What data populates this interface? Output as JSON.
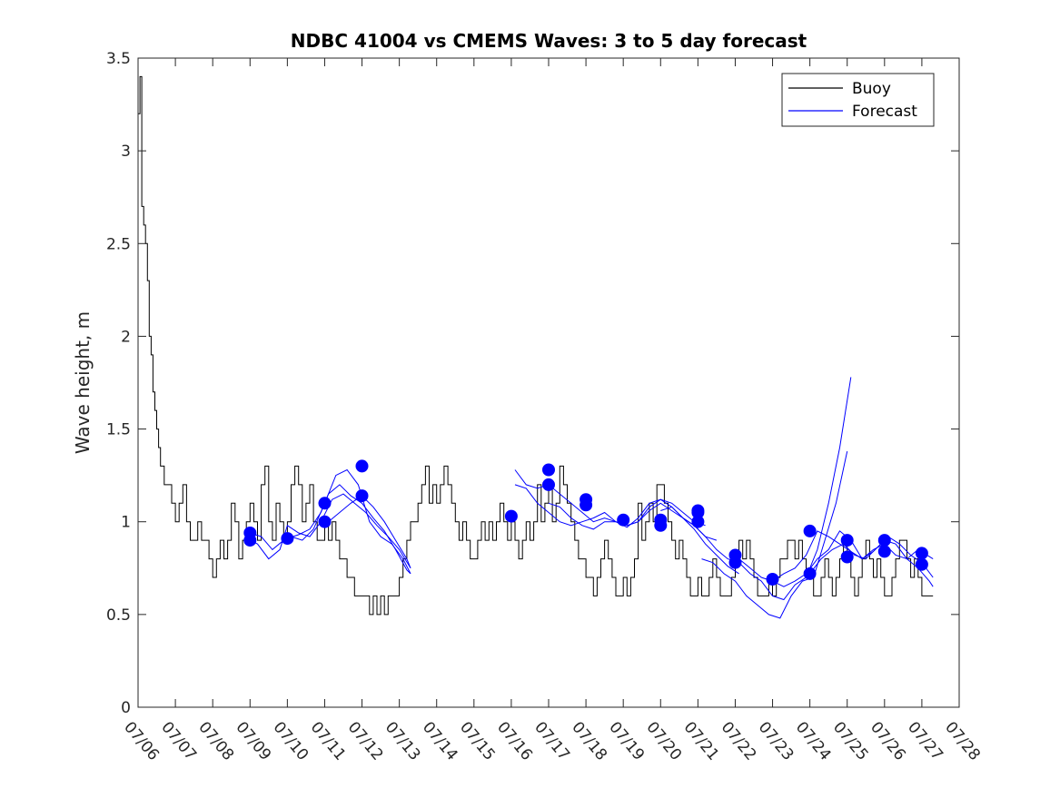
{
  "chart_data": {
    "type": "line",
    "title": "NDBC 41004 vs CMEMS Waves: 3 to 5 day forecast",
    "xlabel": "",
    "ylabel": "Wave height, m",
    "xlim": [
      "07/06",
      "07/28"
    ],
    "ylim": [
      0,
      3.5
    ],
    "grid": false,
    "legend_position": "top-right",
    "xticks": [
      "07/06",
      "07/07",
      "07/08",
      "07/09",
      "07/10",
      "07/11",
      "07/12",
      "07/13",
      "07/14",
      "07/15",
      "07/16",
      "07/17",
      "07/18",
      "07/19",
      "07/20",
      "07/21",
      "07/22",
      "07/23",
      "07/24",
      "07/25",
      "07/26",
      "07/27",
      "07/28"
    ],
    "yticks": [
      0,
      0.5,
      1,
      1.5,
      2,
      2.5,
      3,
      3.5
    ],
    "colors": {
      "buoy": "#000000",
      "forecast": "#0000ff"
    },
    "series": [
      {
        "name": "Buoy",
        "style": "line",
        "x": [
          0.0,
          0.05,
          0.1,
          0.15,
          0.2,
          0.25,
          0.3,
          0.35,
          0.4,
          0.45,
          0.5,
          0.55,
          0.6,
          0.65,
          0.7,
          0.75,
          0.8,
          0.9,
          1.0,
          1.1,
          1.2,
          1.3,
          1.4,
          1.5,
          1.6,
          1.7,
          1.8,
          1.9,
          2.0,
          2.1,
          2.2,
          2.3,
          2.4,
          2.5,
          2.6,
          2.7,
          2.8,
          2.9,
          3.0,
          3.1,
          3.2,
          3.3,
          3.4,
          3.5,
          3.6,
          3.7,
          3.8,
          3.9,
          4.0,
          4.1,
          4.2,
          4.3,
          4.4,
          4.5,
          4.6,
          4.7,
          4.8,
          4.9,
          5.0,
          5.1,
          5.2,
          5.3,
          5.4,
          5.5,
          5.6,
          5.7,
          5.8,
          5.9,
          6.0,
          6.1,
          6.2,
          6.3,
          6.4,
          6.5,
          6.6,
          6.7,
          6.8,
          6.9,
          7.0,
          7.1,
          7.2,
          7.3,
          7.4,
          7.5,
          7.6,
          7.7,
          7.8,
          7.9,
          8.0,
          8.1,
          8.2,
          8.3,
          8.4,
          8.5,
          8.6,
          8.7,
          8.8,
          8.9,
          9.0,
          9.1,
          9.2,
          9.3,
          9.4,
          9.5,
          9.6,
          9.7,
          9.8,
          9.9,
          10.0,
          10.1,
          10.2,
          10.3,
          10.4,
          10.5,
          10.6,
          10.7,
          10.8,
          10.9,
          11.0,
          11.1,
          11.2,
          11.3,
          11.4,
          11.5,
          11.6,
          11.7,
          11.8,
          11.9,
          12.0,
          12.1,
          12.2,
          12.3,
          12.4,
          12.5,
          12.6,
          12.7,
          12.8,
          12.9,
          13.0,
          13.1,
          13.2,
          13.3,
          13.4,
          13.5,
          13.6,
          13.7,
          13.8,
          13.9,
          14.0,
          14.1,
          14.2,
          14.3,
          14.4,
          14.5,
          14.6,
          14.7,
          14.8,
          14.9,
          15.0,
          15.1,
          15.2,
          15.3,
          15.4,
          15.5,
          15.6,
          15.7,
          15.8,
          15.9,
          16.0,
          16.1,
          16.2,
          16.3,
          16.4,
          16.5,
          16.6,
          16.7,
          16.8,
          16.9,
          17.0,
          17.1,
          17.2,
          17.3,
          17.4,
          17.5,
          17.6,
          17.7,
          17.8,
          17.9,
          18.0,
          18.1,
          18.2,
          18.3,
          18.4,
          18.5,
          18.6,
          18.7,
          18.8,
          18.9,
          19.0,
          19.1,
          19.2,
          19.3,
          19.4,
          19.5,
          19.6,
          19.7,
          19.8,
          19.9,
          20.0,
          20.1,
          20.2,
          20.3,
          20.4,
          20.5,
          20.6,
          20.7,
          20.8,
          20.9,
          21.0,
          21.1,
          21.2,
          21.3
        ],
        "y": [
          3.2,
          3.4,
          2.7,
          2.6,
          2.5,
          2.3,
          2.0,
          1.9,
          1.7,
          1.6,
          1.5,
          1.4,
          1.3,
          1.3,
          1.2,
          1.2,
          1.2,
          1.1,
          1.0,
          1.1,
          1.2,
          1.0,
          0.9,
          0.9,
          1.0,
          0.9,
          0.9,
          0.8,
          0.7,
          0.8,
          0.9,
          0.8,
          0.9,
          1.1,
          1.0,
          0.8,
          0.9,
          1.0,
          1.1,
          1.0,
          0.9,
          1.2,
          1.3,
          1.0,
          0.9,
          1.1,
          1.0,
          0.9,
          1.0,
          1.2,
          1.3,
          1.2,
          1.0,
          1.1,
          1.2,
          1.0,
          0.9,
          0.9,
          1.0,
          0.9,
          1.0,
          0.9,
          0.8,
          0.8,
          0.7,
          0.7,
          0.6,
          0.6,
          0.6,
          0.6,
          0.5,
          0.6,
          0.5,
          0.6,
          0.5,
          0.6,
          0.6,
          0.6,
          0.7,
          0.8,
          0.9,
          1.0,
          1.0,
          1.1,
          1.2,
          1.3,
          1.1,
          1.2,
          1.1,
          1.2,
          1.3,
          1.2,
          1.1,
          1.0,
          0.9,
          1.0,
          0.9,
          0.8,
          0.8,
          0.9,
          1.0,
          0.9,
          1.0,
          0.9,
          1.0,
          1.1,
          1.0,
          0.9,
          1.0,
          0.9,
          0.8,
          0.9,
          1.0,
          0.9,
          1.0,
          1.2,
          1.0,
          1.1,
          1.2,
          1.0,
          1.1,
          1.3,
          1.2,
          1.1,
          1.0,
          0.9,
          0.8,
          0.8,
          0.7,
          0.7,
          0.6,
          0.7,
          0.8,
          0.9,
          0.8,
          0.7,
          0.6,
          0.6,
          0.7,
          0.6,
          0.7,
          0.8,
          1.1,
          0.9,
          1.0,
          1.1,
          1.0,
          1.2,
          1.2,
          1.1,
          1.0,
          0.9,
          0.8,
          0.9,
          0.8,
          0.7,
          0.6,
          0.6,
          0.7,
          0.6,
          0.6,
          0.7,
          0.8,
          0.7,
          0.6,
          0.6,
          0.6,
          0.7,
          0.8,
          0.9,
          0.8,
          0.9,
          0.8,
          0.7,
          0.6,
          0.6,
          0.6,
          0.7,
          0.6,
          0.7,
          0.8,
          0.8,
          0.9,
          0.9,
          0.8,
          0.9,
          0.8,
          0.7,
          0.7,
          0.6,
          0.6,
          0.7,
          0.8,
          0.7,
          0.6,
          0.7,
          0.8,
          0.9,
          0.8,
          0.7,
          0.6,
          0.7,
          0.8,
          0.9,
          0.8,
          0.7,
          0.8,
          0.7,
          0.6,
          0.6,
          0.7,
          0.8,
          0.9,
          0.9,
          0.8,
          0.7,
          0.8,
          0.7,
          0.6,
          0.6,
          0.6,
          0.6
        ]
      },
      {
        "name": "Forecast",
        "style": "line",
        "segments": [
          {
            "x": [
              3.0,
              3.2,
              3.5,
              3.8,
              4.0,
              4.3,
              4.6,
              4.9,
              5.2,
              5.5,
              5.8,
              6.1,
              6.4,
              6.7,
              7.0,
              7.3
            ],
            "y": [
              0.9,
              0.88,
              0.8,
              0.85,
              0.98,
              0.94,
              0.92,
              1.0,
              1.12,
              1.15,
              1.1,
              1.05,
              0.98,
              0.92,
              0.85,
              0.75
            ]
          },
          {
            "x": [
              3.0,
              3.3,
              3.6,
              3.9,
              4.1,
              4.4,
              4.7,
              5.0,
              5.3,
              5.6,
              5.9,
              6.2,
              6.5,
              6.8,
              7.1,
              7.3
            ],
            "y": [
              0.94,
              0.92,
              0.85,
              0.9,
              0.92,
              0.9,
              0.96,
              1.1,
              1.25,
              1.28,
              1.2,
              1.0,
              0.92,
              0.88,
              0.8,
              0.72
            ]
          },
          {
            "x": [
              4.0,
              4.3,
              4.6,
              4.9,
              5.1,
              5.4,
              5.7,
              6.0,
              6.3,
              6.6,
              6.9,
              7.2,
              7.3
            ],
            "y": [
              0.91,
              0.93,
              0.96,
              1.05,
              1.15,
              1.2,
              1.14,
              1.1,
              1.02,
              0.95,
              0.85,
              0.74,
              0.72
            ]
          },
          {
            "x": [
              5.1,
              5.4,
              5.7,
              6.0,
              6.3,
              6.6,
              6.9,
              7.2,
              7.3
            ],
            "y": [
              1.0,
              1.05,
              1.1,
              1.14,
              1.08,
              1.0,
              0.9,
              0.8,
              0.75
            ]
          },
          {
            "x": [
              10.1,
              10.4,
              10.7,
              11.0,
              11.3,
              11.6,
              11.9,
              12.2,
              12.5,
              12.8,
              13.1,
              13.4,
              13.7,
              14.0,
              14.3,
              14.6,
              14.9,
              15.2,
              15.5
            ],
            "y": [
              1.2,
              1.18,
              1.1,
              1.05,
              1.0,
              0.98,
              1.0,
              1.02,
              1.05,
              1.0,
              0.98,
              1.0,
              1.08,
              1.12,
              1.08,
              1.02,
              0.98,
              0.92,
              0.9
            ]
          },
          {
            "x": [
              10.1,
              10.4,
              10.7,
              11.0,
              11.3,
              11.6,
              11.9,
              12.2,
              12.5,
              12.8,
              13.1,
              13.4,
              13.7,
              14.0,
              14.3,
              14.6,
              14.9,
              15.2
            ],
            "y": [
              1.28,
              1.2,
              1.18,
              1.2,
              1.15,
              1.1,
              1.05,
              1.0,
              1.02,
              1.0,
              0.97,
              1.02,
              1.1,
              1.12,
              1.1,
              1.05,
              1.0,
              0.98
            ]
          },
          {
            "x": [
              11.0,
              11.3,
              11.6,
              11.9,
              12.2,
              12.5,
              12.8,
              13.1,
              13.4,
              13.7,
              14.0,
              14.3,
              14.6,
              14.9,
              15.2,
              15.5,
              15.8,
              16.1
            ],
            "y": [
              1.1,
              1.08,
              1.02,
              0.98,
              0.96,
              1.0,
              1.0,
              0.98,
              1.0,
              1.06,
              1.1,
              1.06,
              1.02,
              0.96,
              0.88,
              0.82,
              0.76,
              0.72
            ]
          },
          {
            "x": [
              14.0,
              14.3,
              14.6,
              14.9,
              15.2,
              15.5,
              15.8,
              16.1,
              16.4,
              16.7,
              17.0,
              17.3,
              17.6,
              17.9,
              18.2,
              18.5,
              18.8,
              19.1
            ],
            "y": [
              1.06,
              1.08,
              1.02,
              0.98,
              0.92,
              0.85,
              0.8,
              0.78,
              0.72,
              0.68,
              0.6,
              0.58,
              0.66,
              0.7,
              0.85,
              1.1,
              1.4,
              1.78
            ]
          },
          {
            "x": [
              15.1,
              15.4,
              15.7,
              16.0,
              16.3,
              16.6,
              16.9,
              17.2,
              17.5,
              17.8,
              18.1,
              18.4,
              18.7,
              19.0
            ],
            "y": [
              0.8,
              0.78,
              0.72,
              0.68,
              0.6,
              0.55,
              0.5,
              0.48,
              0.6,
              0.68,
              0.7,
              0.9,
              1.1,
              1.38
            ]
          },
          {
            "x": [
              16.1,
              16.4,
              16.7,
              17.0,
              17.3,
              17.6,
              17.9,
              18.2,
              18.5,
              18.8,
              19.1,
              19.4,
              19.7,
              20.0,
              20.3,
              20.6,
              20.9,
              21.3
            ],
            "y": [
              0.8,
              0.75,
              0.7,
              0.68,
              0.65,
              0.68,
              0.72,
              0.8,
              0.85,
              0.95,
              0.9,
              0.8,
              0.85,
              0.88,
              0.82,
              0.8,
              0.85,
              0.8
            ]
          },
          {
            "x": [
              17.0,
              17.3,
              17.6,
              17.9,
              18.2,
              18.5,
              18.8,
              19.1,
              19.4,
              19.7,
              20.0,
              20.3,
              20.6,
              20.9,
              21.2,
              21.3
            ],
            "y": [
              0.68,
              0.72,
              0.75,
              0.82,
              0.95,
              0.92,
              0.88,
              0.84,
              0.8,
              0.84,
              0.9,
              0.88,
              0.8,
              0.75,
              0.68,
              0.65
            ]
          },
          {
            "x": [
              18.0,
              18.3,
              18.6,
              18.9,
              19.2,
              19.5,
              19.8,
              20.1,
              20.4,
              20.7,
              21.0,
              21.3
            ],
            "y": [
              0.72,
              0.8,
              0.85,
              0.88,
              0.82,
              0.8,
              0.86,
              0.92,
              0.88,
              0.82,
              0.78,
              0.7
            ]
          }
        ],
        "markers": {
          "x": [
            3.0,
            3.0,
            4.0,
            5.0,
            5.0,
            6.0,
            6.0,
            10.0,
            11.0,
            11.0,
            12.0,
            12.0,
            13.0,
            14.0,
            14.0,
            15.0,
            15.0,
            15.0,
            16.0,
            16.0,
            17.0,
            18.0,
            18.0,
            19.0,
            19.0,
            20.0,
            20.0,
            21.0,
            21.0
          ],
          "y": [
            0.9,
            0.94,
            0.91,
            1.0,
            1.1,
            1.14,
            1.3,
            1.03,
            1.2,
            1.28,
            1.09,
            1.12,
            1.01,
            0.98,
            1.01,
            1.0,
            1.05,
            1.06,
            0.78,
            0.82,
            0.69,
            0.72,
            0.95,
            0.81,
            0.9,
            0.84,
            0.9,
            0.77,
            0.83
          ]
        }
      }
    ]
  }
}
